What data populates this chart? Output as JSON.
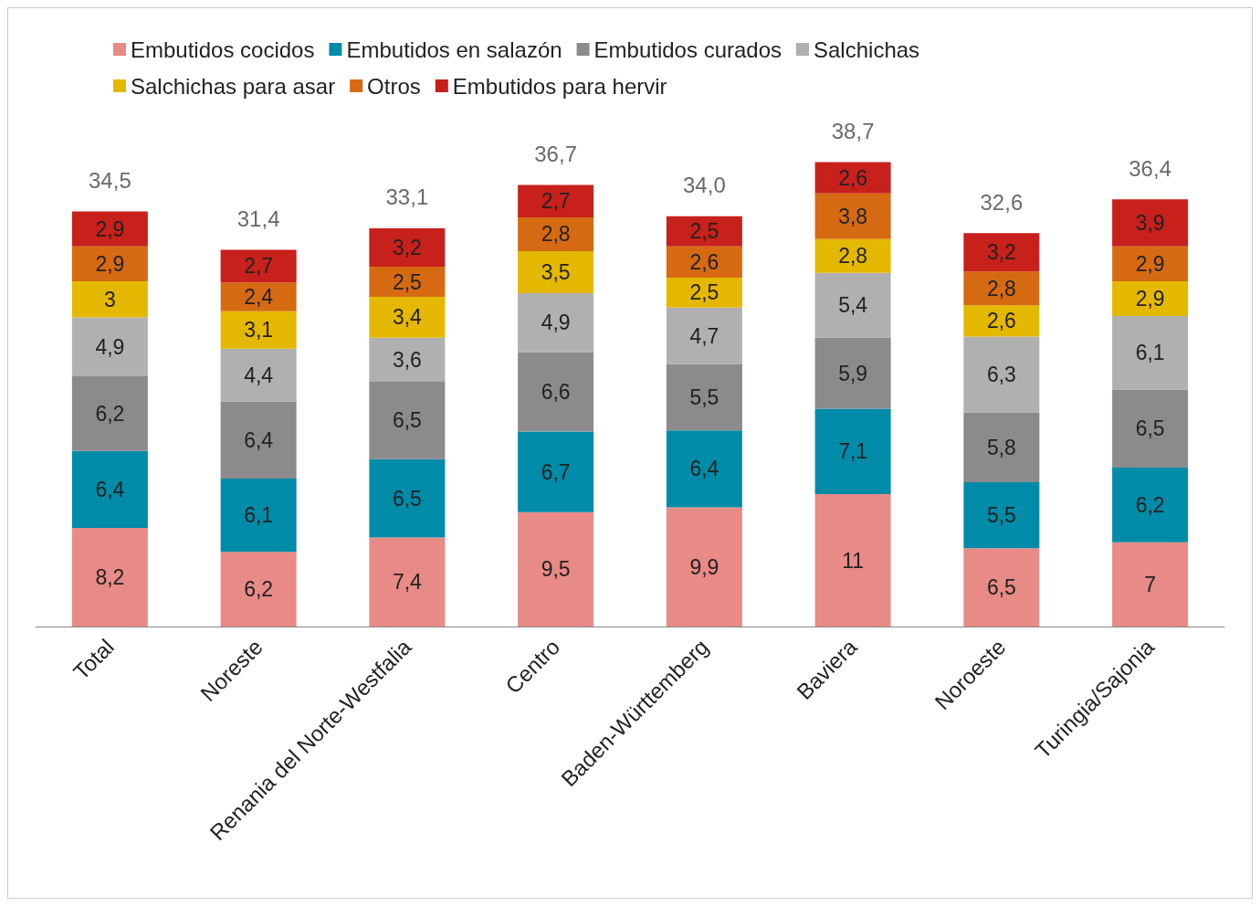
{
  "chart_data": {
    "type": "bar",
    "stacked": true,
    "legend": "top",
    "grid": false,
    "categories": [
      "Total",
      "Noreste",
      "Renania del Norte-Westfalia",
      "Centro",
      "Baden-Württemberg",
      "Baviera",
      "Noroeste",
      "Turingia/Sajonia"
    ],
    "series": [
      {
        "name": "Embutidos cocidos",
        "color": "#e88a86",
        "values": [
          8.2,
          6.2,
          7.4,
          9.5,
          9.9,
          11,
          6.5,
          7
        ],
        "value_labels": [
          "8,2",
          "6,2",
          "7,4",
          "9,5",
          "9,9",
          "11",
          "6,5",
          "7"
        ]
      },
      {
        "name": "Embutidos en salazón",
        "color": "#008ba8",
        "values": [
          6.4,
          6.1,
          6.5,
          6.7,
          6.4,
          7.1,
          5.5,
          6.2
        ],
        "value_labels": [
          "6,4",
          "6,1",
          "6,5",
          "6,7",
          "6,4",
          "7,1",
          "5,5",
          "6,2"
        ]
      },
      {
        "name": "Embutidos curados",
        "color": "#8c8a8c",
        "values": [
          6.2,
          6.4,
          6.5,
          6.6,
          5.5,
          5.9,
          5.8,
          6.5
        ],
        "value_labels": [
          "6,2",
          "6,4",
          "6,5",
          "6,6",
          "5,5",
          "5,9",
          "5,8",
          "6,5"
        ]
      },
      {
        "name": "Salchichas",
        "color": "#b0b0b0",
        "values": [
          4.9,
          4.4,
          3.6,
          4.9,
          4.7,
          5.4,
          6.3,
          6.1
        ],
        "value_labels": [
          "4,9",
          "4,4",
          "3,6",
          "4,9",
          "4,7",
          "5,4",
          "6,3",
          "6,1"
        ]
      },
      {
        "name": "Salchichas para asar",
        "color": "#e5b800",
        "values": [
          3,
          3.1,
          3.4,
          3.5,
          2.5,
          2.8,
          2.6,
          2.9
        ],
        "value_labels": [
          "3",
          "3,1",
          "3,4",
          "3,5",
          "2,5",
          "2,8",
          "2,6",
          "2,9"
        ]
      },
      {
        "name": "Otros",
        "color": "#d66a12",
        "values": [
          2.9,
          2.4,
          2.5,
          2.8,
          2.6,
          3.8,
          2.8,
          2.9
        ],
        "value_labels": [
          "2,9",
          "2,4",
          "2,5",
          "2,8",
          "2,6",
          "3,8",
          "2,8",
          "2,9"
        ]
      },
      {
        "name": "Embutidos para hervir",
        "color": "#c8201b",
        "values": [
          2.9,
          2.7,
          3.2,
          2.7,
          2.5,
          2.6,
          3.2,
          3.9
        ],
        "value_labels": [
          "2,9",
          "2,7",
          "3,2",
          "2,7",
          "2,5",
          "2,6",
          "3,2",
          "3,9"
        ]
      }
    ],
    "annotations": [
      "34,5",
      "31,4",
      "33,1",
      "36,7",
      "34,0",
      "38,7",
      "32,6",
      "36,4"
    ]
  }
}
